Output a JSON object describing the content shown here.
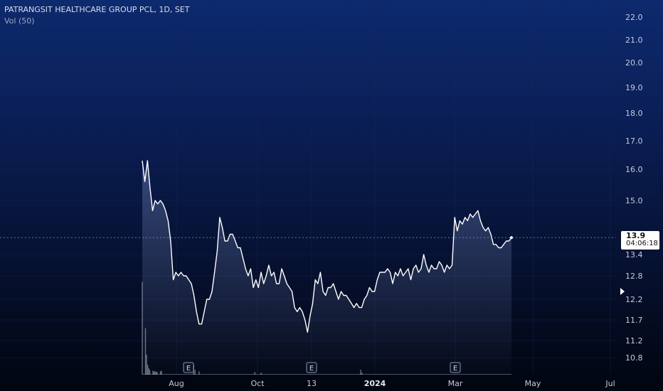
{
  "legend": {
    "title": "PATRANGSIT HEALTHCARE GROUP PCL, 1D, SET",
    "volume_label": "Vol (50)"
  },
  "current": {
    "price": "13.9",
    "countdown": "04:06:18"
  },
  "earnings_marker": "E",
  "colors": {
    "line": "#ffffff",
    "grid": "#1b2b5a",
    "volume": "#b8c2dc"
  },
  "chart_data": {
    "type": "line",
    "title": "PATRANGSIT HEALTHCARE GROUP PCL, 1D, SET",
    "yticks": [
      "22.0",
      "21.0",
      "20.0",
      "19.0",
      "18.0",
      "17.0",
      "16.0",
      "15.0",
      "13.4",
      "12.8",
      "12.2",
      "11.7",
      "11.2",
      "10.8"
    ],
    "ytick_values": [
      22.0,
      21.0,
      20.0,
      19.0,
      18.0,
      17.0,
      16.0,
      15.0,
      13.4,
      12.8,
      12.2,
      11.7,
      11.2,
      10.8
    ],
    "xticks": [
      {
        "label": "Aug",
        "bold": false
      },
      {
        "label": "Oct",
        "bold": false
      },
      {
        "label": "13",
        "bold": false
      },
      {
        "label": "2024",
        "bold": true
      },
      {
        "label": "Mar",
        "bold": false
      },
      {
        "label": "May",
        "bold": false
      },
      {
        "label": "Jul",
        "bold": false
      }
    ],
    "xtick_dates": [
      "2023-08-01",
      "2023-10-01",
      "2023-11-13",
      "2024-01-01",
      "2024-03-01",
      "2024-05-01",
      "2024-07-01"
    ],
    "scale": "log",
    "grid": true,
    "series": [
      {
        "values": [
          {
            "date": "2023-06-30",
            "price": 16.3
          },
          {
            "date": "2023-07-03",
            "price": 15.6
          },
          {
            "date": "2023-07-04",
            "price": 16.3
          },
          {
            "date": "2023-07-05",
            "price": 15.4
          },
          {
            "date": "2023-07-06",
            "price": 14.7
          },
          {
            "date": "2023-07-07",
            "price": 15.0
          },
          {
            "date": "2023-07-10",
            "price": 14.9
          },
          {
            "date": "2023-07-11",
            "price": 15.0
          },
          {
            "date": "2023-07-12",
            "price": 14.9
          },
          {
            "date": "2023-07-13",
            "price": 14.7
          },
          {
            "date": "2023-07-14",
            "price": 14.4
          },
          {
            "date": "2023-07-17",
            "price": 13.8
          },
          {
            "date": "2023-07-18",
            "price": 12.7
          },
          {
            "date": "2023-07-19",
            "price": 12.9
          },
          {
            "date": "2023-07-20",
            "price": 12.8
          },
          {
            "date": "2023-07-21",
            "price": 12.9
          },
          {
            "date": "2023-07-24",
            "price": 12.8
          },
          {
            "date": "2023-07-25",
            "price": 12.8
          },
          {
            "date": "2023-07-26",
            "price": 12.7
          },
          {
            "date": "2023-07-27",
            "price": 12.6
          },
          {
            "date": "2023-07-31",
            "price": 12.3
          },
          {
            "date": "2023-08-01",
            "price": 11.9
          },
          {
            "date": "2023-08-02",
            "price": 11.6
          },
          {
            "date": "2023-08-03",
            "price": 11.6
          },
          {
            "date": "2023-08-04",
            "price": 11.9
          },
          {
            "date": "2023-08-07",
            "price": 12.2
          },
          {
            "date": "2023-08-08",
            "price": 12.2
          },
          {
            "date": "2023-08-09",
            "price": 12.4
          },
          {
            "date": "2023-08-10",
            "price": 12.9
          },
          {
            "date": "2023-08-11",
            "price": 13.5
          },
          {
            "date": "2023-08-14",
            "price": 14.5
          },
          {
            "date": "2023-08-15",
            "price": 14.2
          },
          {
            "date": "2023-08-16",
            "price": 13.8
          },
          {
            "date": "2023-08-17",
            "price": 13.8
          },
          {
            "date": "2023-08-18",
            "price": 14.0
          },
          {
            "date": "2023-08-21",
            "price": 14.0
          },
          {
            "date": "2023-08-22",
            "price": 13.8
          },
          {
            "date": "2023-08-23",
            "price": 13.6
          },
          {
            "date": "2023-08-24",
            "price": 13.6
          },
          {
            "date": "2023-08-25",
            "price": 13.3
          },
          {
            "date": "2023-08-28",
            "price": 13.0
          },
          {
            "date": "2023-08-29",
            "price": 12.8
          },
          {
            "date": "2023-08-30",
            "price": 13.0
          },
          {
            "date": "2023-08-31",
            "price": 12.5
          },
          {
            "date": "2023-09-01",
            "price": 12.7
          },
          {
            "date": "2023-09-04",
            "price": 12.5
          },
          {
            "date": "2023-09-05",
            "price": 12.9
          },
          {
            "date": "2023-09-06",
            "price": 12.6
          },
          {
            "date": "2023-09-07",
            "price": 12.8
          },
          {
            "date": "2023-09-08",
            "price": 13.1
          },
          {
            "date": "2023-09-11",
            "price": 12.8
          },
          {
            "date": "2023-09-12",
            "price": 12.9
          },
          {
            "date": "2023-09-13",
            "price": 12.6
          },
          {
            "date": "2023-09-14",
            "price": 12.6
          },
          {
            "date": "2023-09-15",
            "price": 13.0
          },
          {
            "date": "2023-09-18",
            "price": 12.8
          },
          {
            "date": "2023-09-19",
            "price": 12.6
          },
          {
            "date": "2023-09-20",
            "price": 12.5
          },
          {
            "date": "2023-09-21",
            "price": 12.4
          },
          {
            "date": "2023-09-22",
            "price": 12.0
          },
          {
            "date": "2023-09-25",
            "price": 11.9
          },
          {
            "date": "2023-09-26",
            "price": 12.0
          },
          {
            "date": "2023-09-27",
            "price": 11.9
          },
          {
            "date": "2023-09-28",
            "price": 11.7
          },
          {
            "date": "2023-09-29",
            "price": 11.4
          },
          {
            "date": "2023-10-02",
            "price": 11.8
          },
          {
            "date": "2023-10-03",
            "price": 12.1
          },
          {
            "date": "2023-10-04",
            "price": 12.7
          },
          {
            "date": "2023-10-05",
            "price": 12.6
          },
          {
            "date": "2023-10-06",
            "price": 12.9
          },
          {
            "date": "2023-10-09",
            "price": 12.4
          },
          {
            "date": "2023-10-10",
            "price": 12.3
          },
          {
            "date": "2023-10-11",
            "price": 12.5
          },
          {
            "date": "2023-10-12",
            "price": 12.5
          },
          {
            "date": "2023-10-16",
            "price": 12.6
          },
          {
            "date": "2023-10-17",
            "price": 12.4
          },
          {
            "date": "2023-10-18",
            "price": 12.2
          },
          {
            "date": "2023-10-19",
            "price": 12.4
          },
          {
            "date": "2023-10-20",
            "price": 12.3
          },
          {
            "date": "2023-10-24",
            "price": 12.3
          },
          {
            "date": "2023-10-25",
            "price": 12.2
          },
          {
            "date": "2023-10-26",
            "price": 12.1
          },
          {
            "date": "2023-10-27",
            "price": 12.0
          },
          {
            "date": "2023-10-30",
            "price": 12.1
          },
          {
            "date": "2023-10-31",
            "price": 12.0
          },
          {
            "date": "2023-11-01",
            "price": 12.0
          },
          {
            "date": "2023-11-02",
            "price": 12.2
          },
          {
            "date": "2023-11-03",
            "price": 12.3
          },
          {
            "date": "2023-11-06",
            "price": 12.5
          },
          {
            "date": "2023-11-07",
            "price": 12.4
          },
          {
            "date": "2023-11-08",
            "price": 12.4
          },
          {
            "date": "2023-11-09",
            "price": 12.7
          },
          {
            "date": "2023-11-10",
            "price": 12.9
          },
          {
            "date": "2023-11-13",
            "price": 12.9
          },
          {
            "date": "2023-11-14",
            "price": 12.9
          },
          {
            "date": "2023-11-15",
            "price": 13.0
          },
          {
            "date": "2023-11-16",
            "price": 12.9
          },
          {
            "date": "2023-11-17",
            "price": 12.6
          },
          {
            "date": "2023-11-20",
            "price": 12.9
          },
          {
            "date": "2023-11-21",
            "price": 12.8
          },
          {
            "date": "2023-11-22",
            "price": 13.0
          },
          {
            "date": "2023-11-23",
            "price": 12.8
          },
          {
            "date": "2023-11-24",
            "price": 12.9
          },
          {
            "date": "2023-11-27",
            "price": 13.0
          },
          {
            "date": "2023-11-28",
            "price": 12.7
          },
          {
            "date": "2023-11-29",
            "price": 13.0
          },
          {
            "date": "2023-11-30",
            "price": 13.1
          },
          {
            "date": "2023-12-01",
            "price": 12.9
          },
          {
            "date": "2023-12-04",
            "price": 13.0
          },
          {
            "date": "2023-12-05",
            "price": 13.4
          },
          {
            "date": "2023-12-06",
            "price": 13.1
          },
          {
            "date": "2023-12-07",
            "price": 12.9
          },
          {
            "date": "2023-12-08",
            "price": 13.1
          },
          {
            "date": "2023-12-11",
            "price": 13.0
          },
          {
            "date": "2023-12-12",
            "price": 13.0
          },
          {
            "date": "2023-12-13",
            "price": 13.2
          },
          {
            "date": "2023-12-14",
            "price": 13.1
          },
          {
            "date": "2023-12-15",
            "price": 12.9
          },
          {
            "date": "2023-12-18",
            "price": 13.1
          },
          {
            "date": "2023-12-19",
            "price": 13.0
          },
          {
            "date": "2023-12-20",
            "price": 13.1
          },
          {
            "date": "2023-12-21",
            "price": 14.5
          },
          {
            "date": "2023-12-22",
            "price": 14.1
          },
          {
            "date": "2023-12-25",
            "price": 14.4
          },
          {
            "date": "2023-12-26",
            "price": 14.3
          },
          {
            "date": "2023-12-27",
            "price": 14.5
          },
          {
            "date": "2023-12-28",
            "price": 14.4
          },
          {
            "date": "2023-12-29",
            "price": 14.6
          },
          {
            "date": "2024-01-02",
            "price": 14.5
          },
          {
            "date": "2024-01-03",
            "price": 14.6
          },
          {
            "date": "2024-01-04",
            "price": 14.7
          },
          {
            "date": "2024-01-05",
            "price": 14.4
          },
          {
            "date": "2024-01-08",
            "price": 14.2
          },
          {
            "date": "2024-01-09",
            "price": 14.1
          },
          {
            "date": "2024-01-10",
            "price": 14.2
          },
          {
            "date": "2024-01-11",
            "price": 14.0
          },
          {
            "date": "2024-01-12",
            "price": 13.7
          },
          {
            "date": "2024-01-15",
            "price": 13.7
          },
          {
            "date": "2024-01-16",
            "price": 13.6
          },
          {
            "date": "2024-01-17",
            "price": 13.6
          },
          {
            "date": "2024-01-18",
            "price": 13.7
          },
          {
            "date": "2024-01-19",
            "price": 13.8
          },
          {
            "date": "2024-01-22",
            "price": 13.8
          },
          {
            "date": "2024-01-23",
            "price": 13.9
          }
        ]
      }
    ],
    "volume": [
      {
        "date": "2023-06-30",
        "v": 2.8
      },
      {
        "date": "2023-07-03",
        "v": 1.4
      },
      {
        "date": "2023-07-04",
        "v": 0.6
      },
      {
        "date": "2023-07-05",
        "v": 0.3
      },
      {
        "date": "2023-07-06",
        "v": 0.2
      },
      {
        "date": "2023-07-07",
        "v": 0.15
      },
      {
        "date": "2023-07-10",
        "v": 0.12
      },
      {
        "date": "2023-07-11",
        "v": 0.1
      },
      {
        "date": "2023-07-12",
        "v": 0.1
      },
      {
        "date": "2023-07-13",
        "v": 0.08
      },
      {
        "date": "2023-07-14",
        "v": 0.08
      },
      {
        "date": "2023-07-17",
        "v": 0.1
      },
      {
        "date": "2023-07-18",
        "v": 0.12
      },
      {
        "date": "2023-08-14",
        "v": 0.3
      },
      {
        "date": "2023-08-15",
        "v": 0.15
      },
      {
        "date": "2023-08-18",
        "v": 0.1
      },
      {
        "date": "2023-09-29",
        "v": 0.08
      },
      {
        "date": "2023-10-04",
        "v": 0.06
      },
      {
        "date": "2023-12-21",
        "v": 0.15
      },
      {
        "date": "2023-12-22",
        "v": 0.06
      }
    ],
    "earnings": [
      "2023-08-10",
      "2023-11-13",
      "2024-03-01"
    ]
  }
}
